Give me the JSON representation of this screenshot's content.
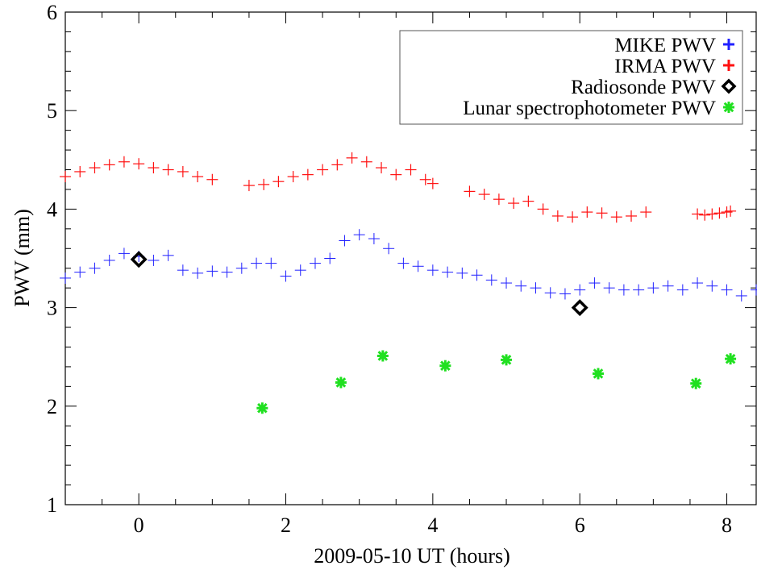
{
  "chart_data": {
    "type": "scatter",
    "title": "",
    "xlabel": "2009-05-10 UT (hours)",
    "ylabel": "PWV (mm)",
    "xlim": [
      -1,
      8.4
    ],
    "ylim": [
      1,
      6
    ],
    "xticks": [
      0,
      2,
      4,
      6,
      8
    ],
    "xtick_labels": [
      "0",
      "2",
      "4",
      "6",
      "8"
    ],
    "yticks": [
      1,
      2,
      3,
      4,
      5,
      6
    ],
    "ytick_labels": [
      "1",
      "2",
      "3",
      "4",
      "5",
      "6"
    ],
    "grid": false,
    "legend_position": "top-right",
    "series": [
      {
        "name": "MIKE PWV",
        "marker": "plus",
        "color": "#2020ff",
        "x": [
          -1.0,
          -0.8,
          -0.6,
          -0.4,
          -0.2,
          0.0,
          0.2,
          0.4,
          0.6,
          0.8,
          1.0,
          1.2,
          1.4,
          1.6,
          1.8,
          2.0,
          2.2,
          2.4,
          2.6,
          2.8,
          3.0,
          3.2,
          3.4,
          3.6,
          3.8,
          4.0,
          4.2,
          4.4,
          4.6,
          4.8,
          5.0,
          5.2,
          5.4,
          5.6,
          5.8,
          6.0,
          6.2,
          6.4,
          6.6,
          6.8,
          7.0,
          7.2,
          7.4,
          7.6,
          7.8,
          8.0,
          8.2,
          8.4
        ],
        "y": [
          3.3,
          3.36,
          3.4,
          3.48,
          3.55,
          3.52,
          3.48,
          3.53,
          3.38,
          3.35,
          3.37,
          3.36,
          3.4,
          3.45,
          3.45,
          3.32,
          3.38,
          3.45,
          3.5,
          3.68,
          3.74,
          3.7,
          3.6,
          3.45,
          3.42,
          3.38,
          3.36,
          3.35,
          3.33,
          3.28,
          3.25,
          3.22,
          3.2,
          3.15,
          3.14,
          3.18,
          3.25,
          3.2,
          3.18,
          3.18,
          3.2,
          3.22,
          3.18,
          3.25,
          3.22,
          3.18,
          3.12,
          3.18
        ]
      },
      {
        "name": "IRMA PWV",
        "marker": "plus",
        "color": "#ff1010",
        "segments": [
          {
            "x": [
              -1.0,
              -0.8,
              -0.6,
              -0.4,
              -0.2,
              0.0,
              0.2,
              0.4,
              0.6,
              0.8,
              1.0
            ],
            "y": [
              4.33,
              4.38,
              4.42,
              4.45,
              4.48,
              4.46,
              4.42,
              4.4,
              4.38,
              4.33,
              4.3
            ]
          },
          {
            "x": [
              1.5,
              1.7,
              1.9,
              2.1,
              2.3,
              2.5,
              2.7,
              2.9,
              3.1,
              3.3,
              3.5,
              3.7,
              3.9,
              4.0
            ],
            "y": [
              4.24,
              4.25,
              4.28,
              4.33,
              4.35,
              4.4,
              4.45,
              4.52,
              4.48,
              4.42,
              4.35,
              4.4,
              4.3,
              4.26
            ]
          },
          {
            "x": [
              4.5,
              4.7,
              4.9,
              5.1,
              5.3,
              5.5,
              5.7,
              5.9,
              6.1,
              6.3,
              6.5,
              6.7,
              6.9
            ],
            "y": [
              4.18,
              4.15,
              4.1,
              4.06,
              4.08,
              4.0,
              3.93,
              3.92,
              3.97,
              3.96,
              3.92,
              3.93,
              3.97
            ]
          },
          {
            "x": [
              7.6,
              7.7,
              7.8,
              7.9,
              8.0,
              8.05
            ],
            "y": [
              3.95,
              3.94,
              3.95,
              3.96,
              3.97,
              3.98
            ]
          }
        ]
      },
      {
        "name": "Radiosonde PWV",
        "marker": "diamond",
        "color": "#000000",
        "x": [
          0.0,
          6.0
        ],
        "y": [
          3.49,
          3.0
        ]
      },
      {
        "name": "Lunar spectrophotometer PWV",
        "marker": "asterisk",
        "color": "#20e020",
        "x": [
          1.68,
          2.75,
          3.32,
          4.17,
          5.0,
          6.25,
          7.58,
          8.05
        ],
        "y": [
          1.98,
          2.24,
          2.51,
          2.41,
          2.47,
          2.33,
          2.23,
          2.48
        ]
      }
    ]
  }
}
